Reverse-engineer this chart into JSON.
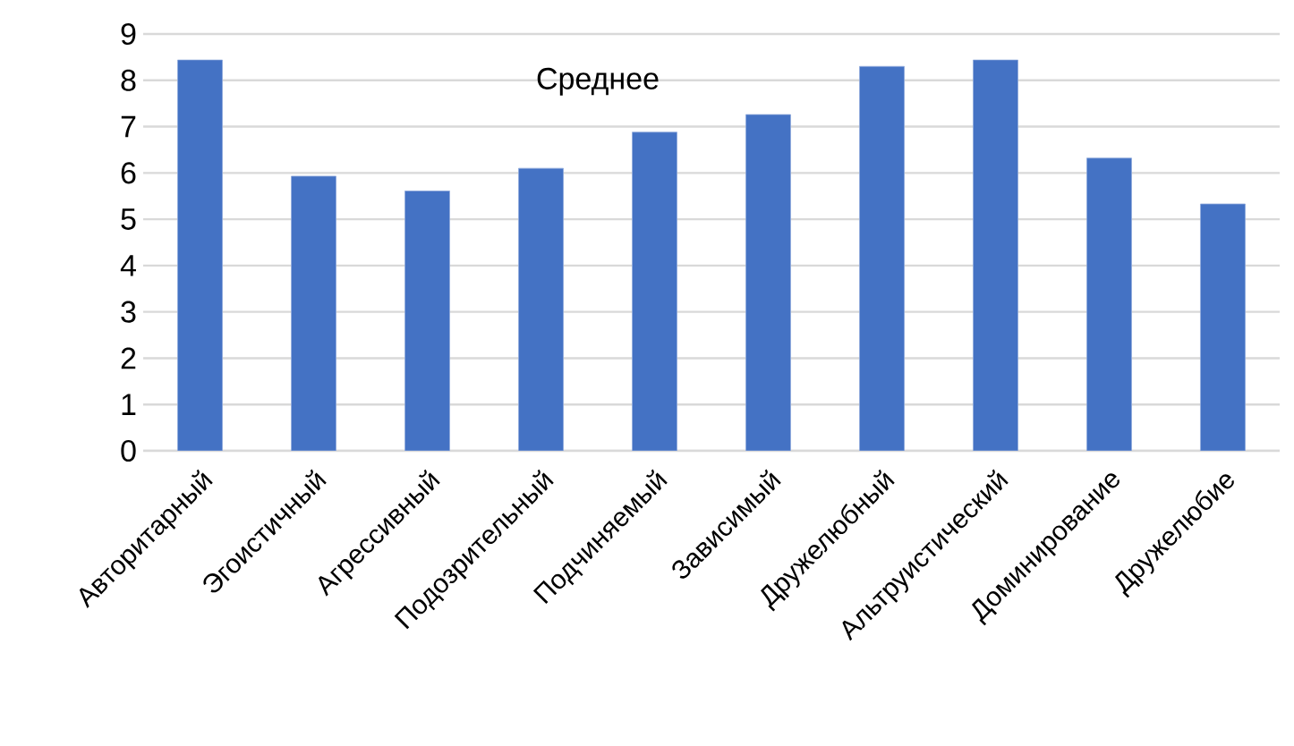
{
  "chart_data": {
    "type": "bar",
    "title": "Среднее",
    "categories": [
      "Авторитарный",
      "Эгоистичный",
      "Агрессивный",
      "Подозрительный",
      "Подчиняемый",
      "Зависимый",
      "Дружелюбный",
      "Альтруистический",
      "Доминирование",
      "Дружелюбие"
    ],
    "values": [
      8.44,
      5.93,
      5.61,
      6.1,
      6.88,
      7.26,
      8.3,
      8.44,
      6.32,
      5.33
    ],
    "color": "#4472c4",
    "ylim": [
      0,
      9
    ],
    "yticks": [
      0,
      1,
      2,
      3,
      4,
      5,
      6,
      7,
      8,
      9
    ],
    "grid": "y"
  }
}
